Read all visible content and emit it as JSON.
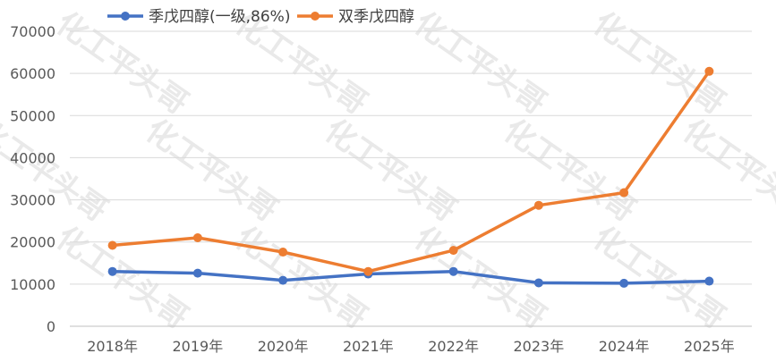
{
  "chart_data": {
    "type": "line",
    "categories": [
      "2018年",
      "2019年",
      "2020年",
      "2021年",
      "2022年",
      "2023年",
      "2024年",
      "2025年"
    ],
    "series": [
      {
        "name": "季戊四醇(一级,86%)",
        "color": "#4472C4",
        "values": [
          13000,
          12600,
          10900,
          12400,
          13000,
          10300,
          10200,
          10700
        ]
      },
      {
        "name": "双季戊四醇",
        "color": "#ED7D31",
        "values": [
          19200,
          21000,
          17600,
          13000,
          18000,
          28700,
          31700,
          60500
        ]
      }
    ],
    "ylim": [
      0,
      70000
    ],
    "yticks": [
      0,
      10000,
      20000,
      30000,
      40000,
      50000,
      60000,
      70000
    ],
    "grid": true,
    "legend_position": "top-left",
    "watermark": "化工平头哥"
  }
}
